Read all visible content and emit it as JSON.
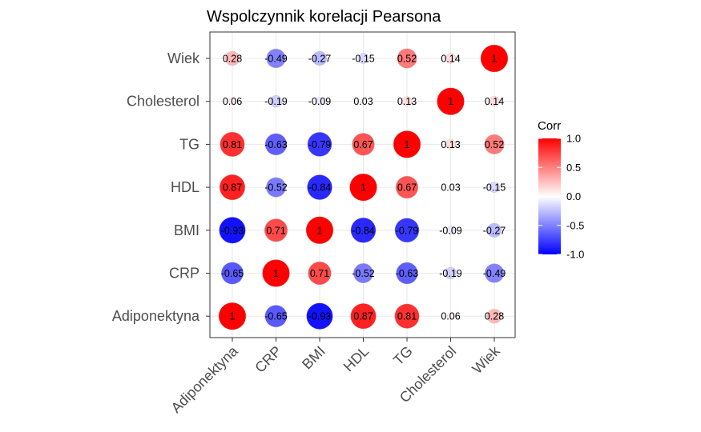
{
  "chart_data": {
    "type": "heatmap",
    "title": "Wspolczynnik korelacji Pearsona",
    "variables": [
      "Adiponektyna",
      "CRP",
      "BMI",
      "HDL",
      "TG",
      "Cholesterol",
      "Wiek"
    ],
    "x_order": [
      "Adiponektyna",
      "CRP",
      "BMI",
      "HDL",
      "TG",
      "Cholesterol",
      "Wiek"
    ],
    "y_order_top_to_bottom": [
      "Wiek",
      "Cholesterol",
      "TG",
      "HDL",
      "BMI",
      "CRP",
      "Adiponektyna"
    ],
    "matrix": [
      [
        1,
        -0.65,
        -0.93,
        0.87,
        0.81,
        0.06,
        0.28
      ],
      [
        -0.65,
        1,
        0.71,
        -0.52,
        -0.63,
        -0.19,
        -0.49
      ],
      [
        -0.93,
        0.71,
        1,
        -0.84,
        -0.79,
        -0.09,
        -0.27
      ],
      [
        0.87,
        -0.52,
        -0.84,
        1,
        0.67,
        0.03,
        -0.15
      ],
      [
        0.81,
        -0.63,
        -0.79,
        0.67,
        1,
        0.13,
        0.52
      ],
      [
        0.06,
        -0.19,
        -0.09,
        0.03,
        0.13,
        1,
        0.14
      ],
      [
        0.28,
        -0.49,
        -0.27,
        -0.15,
        0.52,
        0.14,
        1
      ]
    ],
    "legend": {
      "title": "Corr",
      "ticks": [
        1.0,
        0.5,
        0.0,
        -0.5,
        -1.0
      ],
      "tick_labels": [
        "1.0",
        "0.5",
        "0.0",
        "-0.5",
        "-1.0"
      ],
      "range": [
        -1,
        1
      ],
      "placement": "right"
    },
    "colors": {
      "low": "#0000ff",
      "mid": "#ffffff",
      "high": "#ff0000"
    },
    "marker": "circle sized by |r|",
    "grid": true
  }
}
